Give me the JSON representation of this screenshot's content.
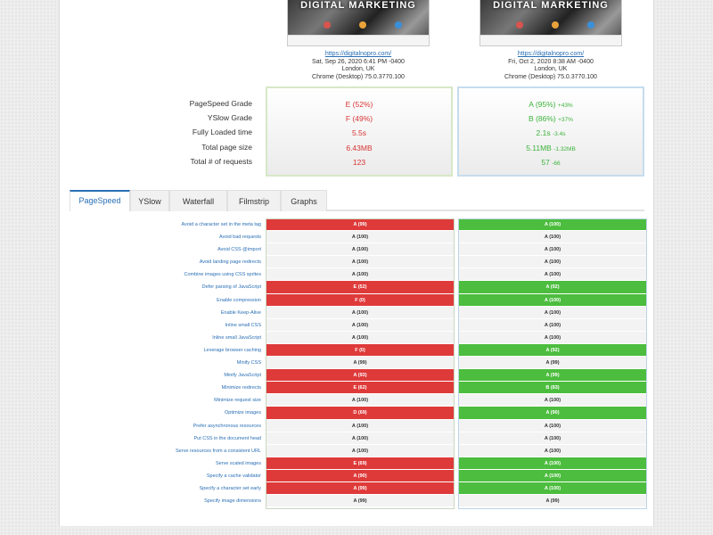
{
  "tests": [
    {
      "thumbnail_title": "DIGITAL MARKETING",
      "url": "https://digitalnopro.com/",
      "date": "Sat, Sep 26, 2020 6:41 PM -0400",
      "location": "London, UK",
      "browser": "Chrome (Desktop) 75.0.3770.100"
    },
    {
      "thumbnail_title": "DIGITAL MARKETING",
      "url": "https://digitalnopro.com/",
      "date": "Fri, Oct 2, 2020 8:38 AM -0400",
      "location": "London, UK",
      "browser": "Chrome (Desktop) 75.0.3770.100"
    }
  ],
  "summary": {
    "labels": [
      "PageSpeed Grade",
      "YSlow Grade",
      "Fully Loaded time",
      "Total page size",
      "Total # of requests"
    ],
    "old": [
      "E (52%)",
      "F (49%)",
      "5.5s",
      "6.43MB",
      "123"
    ],
    "new": [
      {
        "value": "A (95%)",
        "delta": "+43%"
      },
      {
        "value": "B (86%)",
        "delta": "+37%"
      },
      {
        "value": "2.1s",
        "delta": "-3.4s"
      },
      {
        "value": "5.11MB",
        "delta": "-1.32MB"
      },
      {
        "value": "57",
        "delta": "-66"
      }
    ],
    "colors": {
      "bad": "#d93535",
      "good": "#3cb33c"
    }
  },
  "tabs": [
    "PageSpeed",
    "YSlow",
    "Waterfall",
    "Filmstrip",
    "Graphs"
  ],
  "active_tab": "PageSpeed",
  "rules": [
    {
      "name": "Avoid a character set in the meta tag",
      "old": "A (99)",
      "old_status": "red",
      "new": "A (100)",
      "new_status": "green"
    },
    {
      "name": "Avoid bad requests",
      "old": "A (100)",
      "old_status": "neutral",
      "new": "A (100)",
      "new_status": "neutral"
    },
    {
      "name": "Avoid CSS @import",
      "old": "A (100)",
      "old_status": "neutral",
      "new": "A (100)",
      "new_status": "neutral"
    },
    {
      "name": "Avoid landing page redirects",
      "old": "A (100)",
      "old_status": "neutral",
      "new": "A (100)",
      "new_status": "neutral"
    },
    {
      "name": "Combine images using CSS sprites",
      "old": "A (100)",
      "old_status": "neutral",
      "new": "A (100)",
      "new_status": "neutral"
    },
    {
      "name": "Defer parsing of JavaScript",
      "old": "E (52)",
      "old_status": "red",
      "new": "A (92)",
      "new_status": "green"
    },
    {
      "name": "Enable compression",
      "old": "F (0)",
      "old_status": "red",
      "new": "A (100)",
      "new_status": "green"
    },
    {
      "name": "Enable Keep-Alive",
      "old": "A (100)",
      "old_status": "neutral",
      "new": "A (100)",
      "new_status": "neutral"
    },
    {
      "name": "Inline small CSS",
      "old": "A (100)",
      "old_status": "neutral",
      "new": "A (100)",
      "new_status": "neutral"
    },
    {
      "name": "Inline small JavaScript",
      "old": "A (100)",
      "old_status": "neutral",
      "new": "A (100)",
      "new_status": "neutral"
    },
    {
      "name": "Leverage browser caching",
      "old": "F (0)",
      "old_status": "red",
      "new": "A (92)",
      "new_status": "green"
    },
    {
      "name": "Minify CSS",
      "old": "A (99)",
      "old_status": "neutral",
      "new": "A (99)",
      "new_status": "neutral"
    },
    {
      "name": "Minify JavaScript",
      "old": "A (93)",
      "old_status": "red",
      "new": "A (99)",
      "new_status": "green"
    },
    {
      "name": "Minimize redirects",
      "old": "E (62)",
      "old_status": "red",
      "new": "B (83)",
      "new_status": "green"
    },
    {
      "name": "Minimize request size",
      "old": "A (100)",
      "old_status": "neutral",
      "new": "A (100)",
      "new_status": "neutral"
    },
    {
      "name": "Optimize images",
      "old": "D (69)",
      "old_status": "red",
      "new": "A (90)",
      "new_status": "green"
    },
    {
      "name": "Prefer asynchronous resources",
      "old": "A (100)",
      "old_status": "neutral",
      "new": "A (100)",
      "new_status": "neutral"
    },
    {
      "name": "Put CSS in the document head",
      "old": "A (100)",
      "old_status": "neutral",
      "new": "A (100)",
      "new_status": "neutral"
    },
    {
      "name": "Serve resources from a consistent URL",
      "old": "A (100)",
      "old_status": "neutral",
      "new": "A (100)",
      "new_status": "neutral"
    },
    {
      "name": "Serve scaled images",
      "old": "E (69)",
      "old_status": "red",
      "new": "A (100)",
      "new_status": "green"
    },
    {
      "name": "Specify a cache validator",
      "old": "A (90)",
      "old_status": "red",
      "new": "A (100)",
      "new_status": "green"
    },
    {
      "name": "Specify a character set early",
      "old": "A (99)",
      "old_status": "red",
      "new": "A (100)",
      "new_status": "green"
    },
    {
      "name": "Specify image dimensions",
      "old": "A (99)",
      "old_status": "neutral",
      "new": "A (99)",
      "new_status": "neutral"
    }
  ]
}
